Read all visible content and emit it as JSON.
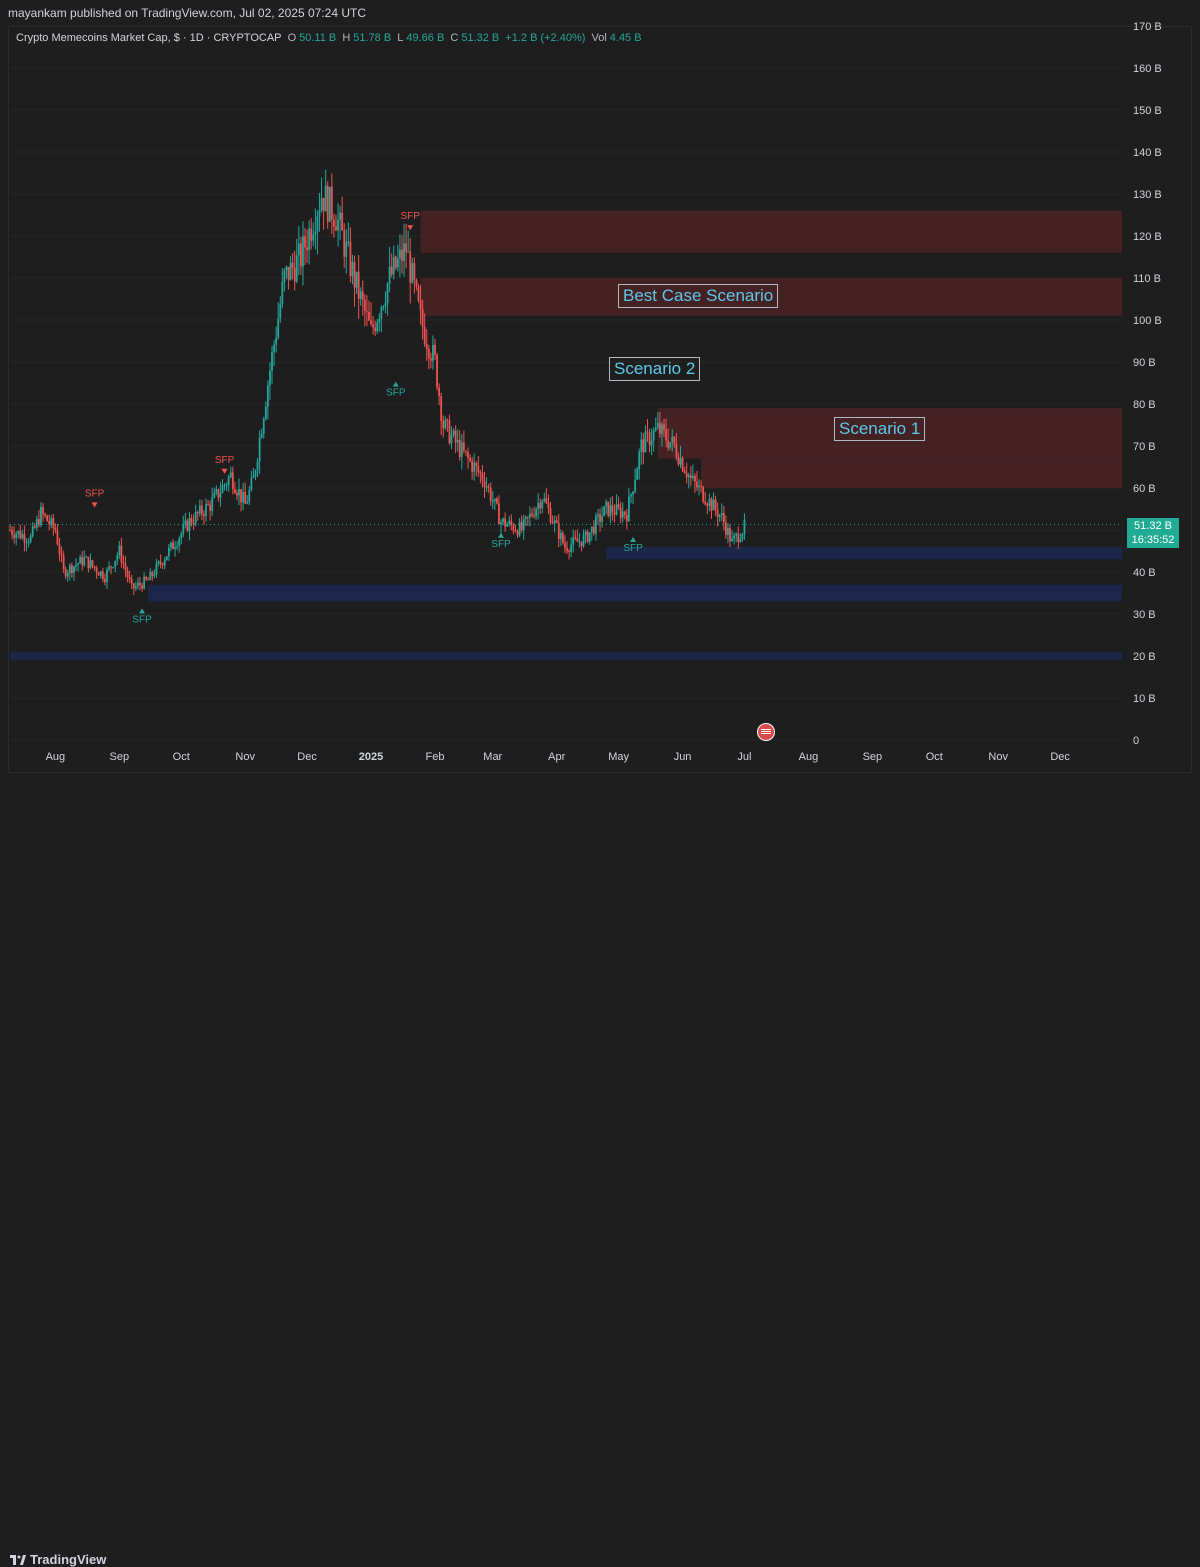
{
  "header": {
    "publish_line": "mayankam published on TradingView.com, Jul 02, 2025 07:24 UTC"
  },
  "legend": {
    "symbol": "Crypto Memecoins Market Cap, $ · 1D · CRYPTOCAP",
    "open_label": "O",
    "open_value": "50.11 B",
    "high_label": "H",
    "high_value": "51.78 B",
    "low_label": "L",
    "low_value": "49.66 B",
    "close_label": "C",
    "close_value": "51.32 B",
    "change": "+1.2 B (+2.40%)",
    "vol_label": "Vol",
    "vol_value": "4.45 B"
  },
  "price_badge": {
    "price": "51.32 B",
    "countdown": "16:35:52"
  },
  "scenarios": {
    "best": "Best Case Scenario",
    "scenario2": "Scenario 2",
    "scenario1": "Scenario 1"
  },
  "footer": {
    "brand": "TradingView"
  },
  "colors": {
    "up": "#26a69a",
    "down": "#ef5350",
    "background": "#1e1e1e",
    "badge": "#22ab94"
  },
  "chart_data": {
    "type": "candlestick",
    "y_unit": "B",
    "ylim": [
      0,
      170
    ],
    "y_ticks": [
      0,
      10,
      20,
      30,
      40,
      50,
      60,
      70,
      80,
      90,
      100,
      110,
      120,
      130,
      140,
      150,
      160,
      170
    ],
    "y_tick_labels": [
      "0",
      "10 B",
      "20 B",
      "30 B",
      "40 B",
      "50 B",
      "60 B",
      "70 B",
      "80 B",
      "90 B",
      "100 B",
      "110 B",
      "120 B",
      "130 B",
      "140 B",
      "150 B",
      "160 B",
      "170 B"
    ],
    "x_start": "2024-07-10",
    "x_end": "2025-12-31",
    "x_ticks": [
      {
        "date": "2024-08-01",
        "label": "Aug"
      },
      {
        "date": "2024-09-01",
        "label": "Sep"
      },
      {
        "date": "2024-10-01",
        "label": "Oct"
      },
      {
        "date": "2024-11-01",
        "label": "Nov"
      },
      {
        "date": "2024-12-01",
        "label": "Dec"
      },
      {
        "date": "2025-01-01",
        "label": "2025"
      },
      {
        "date": "2025-02-01",
        "label": "Feb"
      },
      {
        "date": "2025-03-01",
        "label": "Mar"
      },
      {
        "date": "2025-04-01",
        "label": "Apr"
      },
      {
        "date": "2025-05-01",
        "label": "May"
      },
      {
        "date": "2025-06-01",
        "label": "Jun"
      },
      {
        "date": "2025-07-01",
        "label": "Jul"
      },
      {
        "date": "2025-08-01",
        "label": "Aug"
      },
      {
        "date": "2025-09-01",
        "label": "Sep"
      },
      {
        "date": "2025-10-01",
        "label": "Oct"
      },
      {
        "date": "2025-11-01",
        "label": "Nov"
      },
      {
        "date": "2025-12-01",
        "label": "Dec"
      }
    ],
    "close_path": [
      [
        "2024-07-10",
        50
      ],
      [
        "2024-07-20",
        48
      ],
      [
        "2024-07-25",
        54
      ],
      [
        "2024-08-01",
        50
      ],
      [
        "2024-08-05",
        40
      ],
      [
        "2024-08-15",
        43
      ],
      [
        "2024-08-25",
        39
      ],
      [
        "2024-09-01",
        45
      ],
      [
        "2024-09-07",
        36
      ],
      [
        "2024-09-15",
        38
      ],
      [
        "2024-09-25",
        45
      ],
      [
        "2024-10-05",
        52
      ],
      [
        "2024-10-15",
        56
      ],
      [
        "2024-10-25",
        63
      ],
      [
        "2024-11-01",
        56
      ],
      [
        "2024-11-05",
        62
      ],
      [
        "2024-11-12",
        85
      ],
      [
        "2024-11-20",
        110
      ],
      [
        "2024-11-28",
        115
      ],
      [
        "2024-12-08",
        130
      ],
      [
        "2024-12-15",
        125
      ],
      [
        "2024-12-25",
        108
      ],
      [
        "2025-01-01",
        97
      ],
      [
        "2025-01-10",
        110
      ],
      [
        "2025-01-18",
        117
      ],
      [
        "2025-01-25",
        100
      ],
      [
        "2025-02-01",
        90
      ],
      [
        "2025-02-05",
        75
      ],
      [
        "2025-02-15",
        68
      ],
      [
        "2025-02-25",
        62
      ],
      [
        "2025-03-05",
        52
      ],
      [
        "2025-03-15",
        50
      ],
      [
        "2025-03-25",
        58
      ],
      [
        "2025-04-05",
        46
      ],
      [
        "2025-04-15",
        48
      ],
      [
        "2025-04-25",
        55
      ],
      [
        "2025-05-05",
        54
      ],
      [
        "2025-05-12",
        70
      ],
      [
        "2025-05-20",
        74
      ],
      [
        "2025-05-28",
        70
      ],
      [
        "2025-06-05",
        62
      ],
      [
        "2025-06-12",
        58
      ],
      [
        "2025-06-20",
        53
      ],
      [
        "2025-06-25",
        47
      ],
      [
        "2025-07-02",
        51.32
      ]
    ],
    "zones": [
      {
        "from": "2025-01-25",
        "to": "2025-12-31",
        "low": 116,
        "high": 126,
        "kind": "supply"
      },
      {
        "from": "2025-01-25",
        "to": "2025-12-31",
        "low": 101,
        "high": 110,
        "kind": "supply"
      },
      {
        "from": "2025-05-20",
        "to": "2025-12-31",
        "low": 67,
        "high": 79,
        "kind": "supply"
      },
      {
        "from": "2025-06-10",
        "to": "2025-12-31",
        "low": 60,
        "high": 67,
        "kind": "supply"
      },
      {
        "from": "2025-04-25",
        "to": "2025-12-31",
        "low": 43,
        "high": 46,
        "kind": "demand"
      },
      {
        "from": "2024-09-15",
        "to": "2025-12-31",
        "low": 33,
        "high": 37,
        "kind": "demand"
      },
      {
        "from": "2024-07-10",
        "to": "2025-12-31",
        "low": 19,
        "high": 21,
        "kind": "demand"
      }
    ],
    "annotations": [
      {
        "text": "SFP",
        "date": "2024-08-20",
        "value": 58,
        "kind": "bear"
      },
      {
        "text": "SFP",
        "date": "2024-10-22",
        "value": 66,
        "kind": "bear"
      },
      {
        "text": "SFP",
        "date": "2025-01-20",
        "value": 124,
        "kind": "bear"
      },
      {
        "text": "SFP",
        "date": "2024-09-12",
        "value": 28,
        "kind": "bull"
      },
      {
        "text": "SFP",
        "date": "2025-01-13",
        "value": 82,
        "kind": "bull"
      },
      {
        "text": "SFP",
        "date": "2025-03-05",
        "value": 46,
        "kind": "bull"
      },
      {
        "text": "SFP",
        "date": "2025-05-08",
        "value": 45,
        "kind": "bull"
      }
    ]
  }
}
